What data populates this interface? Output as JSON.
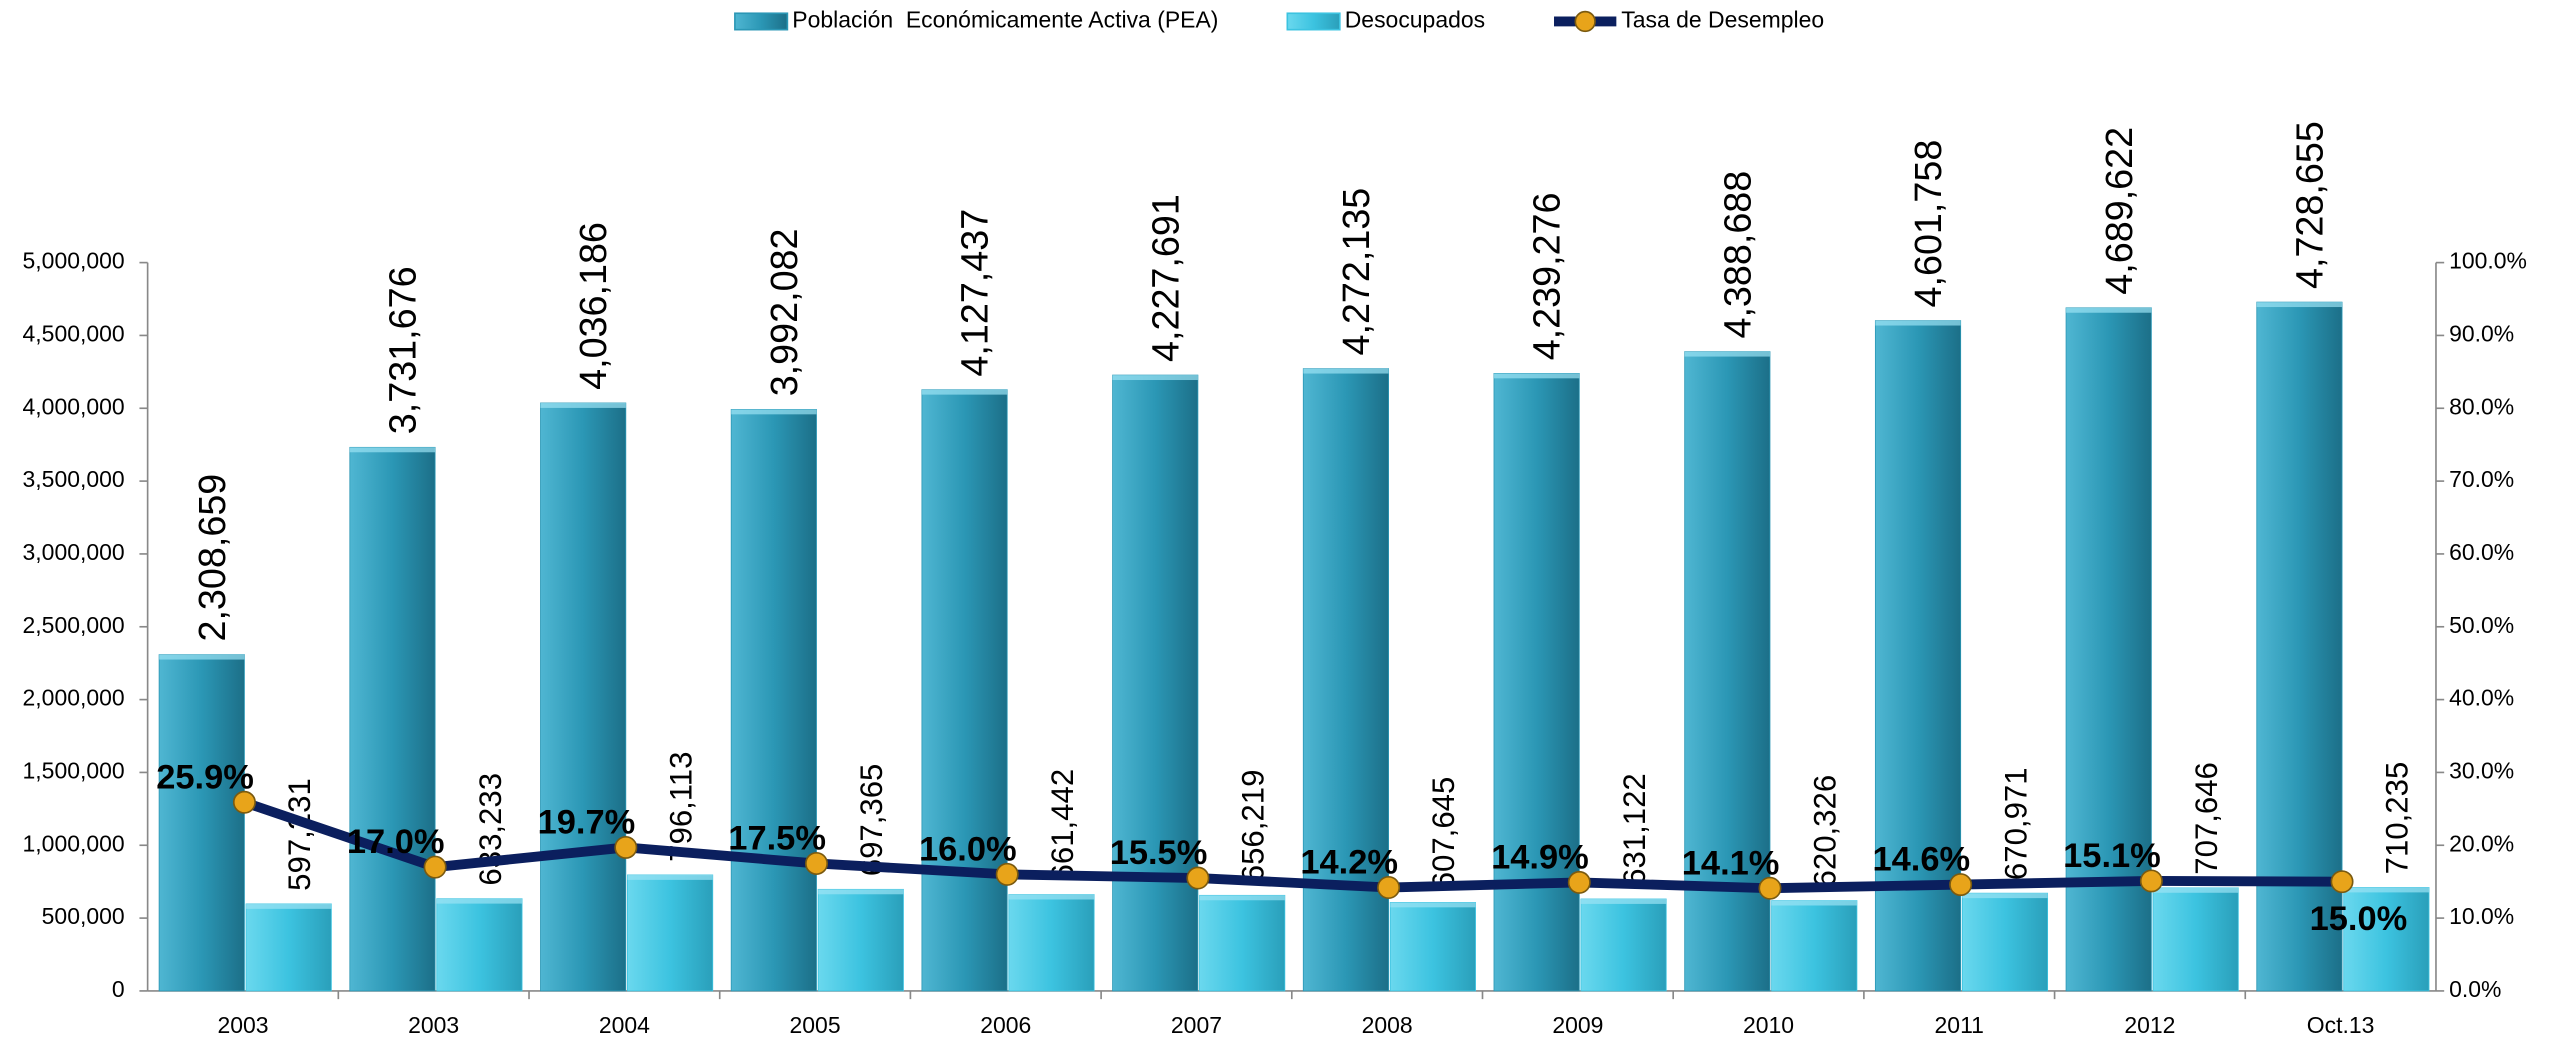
{
  "chart_data": {
    "type": "bar",
    "categories": [
      "2003",
      "2003",
      "2004",
      "2005",
      "2006",
      "2007",
      "2008",
      "2009",
      "2010",
      "2011",
      "2012",
      "Oct.13"
    ],
    "series": [
      {
        "name": "Población  Económicamente Activa (PEA)",
        "color": "#2b97b5",
        "type": "bar",
        "values": [
          2308659,
          3731676,
          4036186,
          3992082,
          4127437,
          4227691,
          4272135,
          4239276,
          4388688,
          4601758,
          4689622,
          4728655
        ],
        "value_labels": [
          "2,308,659",
          "3,731,676",
          "4,036,186",
          "3,992,082",
          "4,127,437",
          "4,227,691",
          "4,272,135",
          "4,239,276",
          "4,388,688",
          "4,601,758",
          "4,689,622",
          "4,728,655"
        ]
      },
      {
        "name": "Desocupados",
        "color": "#3cc3e0",
        "type": "bar",
        "values": [
          597231,
          633233,
          796113,
          697365,
          661442,
          656219,
          607645,
          631122,
          620326,
          670971,
          707646,
          710235
        ],
        "value_labels": [
          "597,231",
          "633,233",
          "796,113",
          "697,365",
          "661,442",
          "656,219",
          "607,645",
          "631,122",
          "620,326",
          "670,971",
          "707,646",
          "710,235"
        ]
      },
      {
        "name": "Tasa de Desempleo",
        "color": "#0b1f5e",
        "marker_color": "#e8a41a",
        "type": "line",
        "axis": "y2",
        "values": [
          25.9,
          17.0,
          19.7,
          17.5,
          16.0,
          15.5,
          14.2,
          14.9,
          14.1,
          14.6,
          15.1,
          15.0
        ],
        "value_labels": [
          "25.9%",
          "17.0%",
          "19.7%",
          "17.5%",
          "16.0%",
          "15.5%",
          "14.2%",
          "14.9%",
          "14.1%",
          "14.6%",
          "15.1%",
          "15.0%"
        ]
      }
    ],
    "ylim": [
      0,
      5000000
    ],
    "yticks": [
      0,
      {
        "value": 500000,
        "label": "500,000"
      },
      {
        "value": 1000000,
        "label": "1,000,000"
      },
      {
        "value": 1500000,
        "label": "1,500,000"
      },
      {
        "value": 2000000,
        "label": "2,000,000"
      },
      {
        "value": 2500000,
        "label": "2,500,000"
      },
      {
        "value": 3000000,
        "label": "3,000,000"
      },
      {
        "value": 3500000,
        "label": "3,500,000"
      },
      {
        "value": 4000000,
        "label": "4,000,000"
      },
      {
        "value": 4500000,
        "label": "4,500,000"
      },
      {
        "value": 5000000,
        "label": "5,000,000"
      }
    ],
    "y2lim": [
      0,
      100
    ],
    "y2ticks": [
      {
        "value": 0,
        "label": "0.0%"
      },
      {
        "value": 10,
        "label": "10.0%"
      },
      {
        "value": 20,
        "label": "20.0%"
      },
      {
        "value": 30,
        "label": "30.0%"
      },
      {
        "value": 40,
        "label": "40.0%"
      },
      {
        "value": 50,
        "label": "50.0%"
      },
      {
        "value": 60,
        "label": "60.0%"
      },
      {
        "value": 70,
        "label": "70.0%"
      },
      {
        "value": 80,
        "label": "80.0%"
      },
      {
        "value": 90,
        "label": "90.0%"
      },
      {
        "value": 100,
        "label": "100.0%"
      }
    ],
    "legend": "top",
    "grid": false
  }
}
